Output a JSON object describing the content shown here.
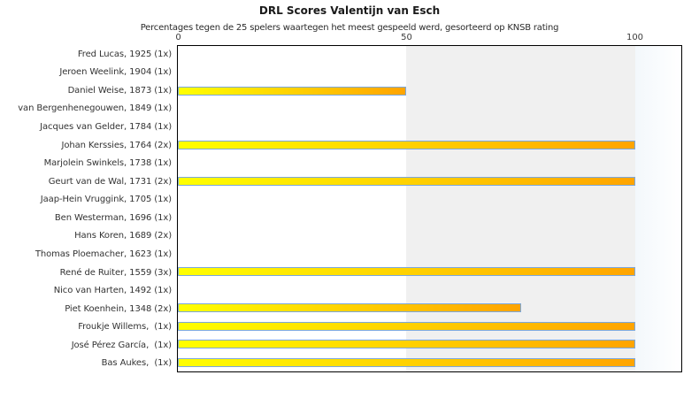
{
  "chart_data": {
    "type": "bar",
    "orientation": "horizontal",
    "title": "DRL Scores Valentijn van Esch",
    "subtitle": "Percentages tegen de 25 spelers waartegen het meest gespeeld werd, gesorteerd op KNSB rating",
    "categories": [
      "Fred Lucas, 1925 (1x)",
      "Jeroen Weelink, 1904 (1x)",
      "Daniel Weise, 1873 (1x)",
      "van Bergenhenegouwen, 1849 (1x)",
      "Jacques van Gelder, 1784 (1x)",
      "Johan Kerssies, 1764 (2x)",
      "Marjolein Swinkels, 1738 (1x)",
      "Geurt van de Wal, 1731 (2x)",
      "Jaap-Hein Vruggink, 1705 (1x)",
      "Ben Westerman, 1696 (1x)",
      "Hans Koren, 1689 (2x)",
      "Thomas Ploemacher, 1623 (1x)",
      "René de Ruiter, 1559 (3x)",
      "Nico van Harten, 1492 (1x)",
      "Piet Koenhein, 1348 (2x)",
      "Froukje Willems,  (1x)",
      "José Pérez García,  (1x)",
      "Bas Aukes,  (1x)"
    ],
    "values": [
      0,
      0,
      50,
      0,
      0,
      100,
      0,
      100,
      0,
      0,
      0,
      0,
      100,
      0,
      75,
      100,
      100,
      100
    ],
    "xlabel": "",
    "ylabel": "",
    "xlim": [
      0,
      110
    ],
    "x_ticks": [
      0,
      50,
      100
    ],
    "grid": false,
    "legend": false,
    "bands": {
      "gray_band_range": [
        50,
        100
      ],
      "highlight_band_range": [
        100,
        110
      ]
    },
    "colors": {
      "bar_gradient_start": "#ffff00",
      "bar_gradient_end": "#ffa400",
      "bar_border": "#7ba7dc",
      "band_gray": "#f0f0f0",
      "band_highlight_start": "#f3f8fc",
      "band_highlight_end": "#ffffff",
      "plot_border": "#000000"
    }
  }
}
